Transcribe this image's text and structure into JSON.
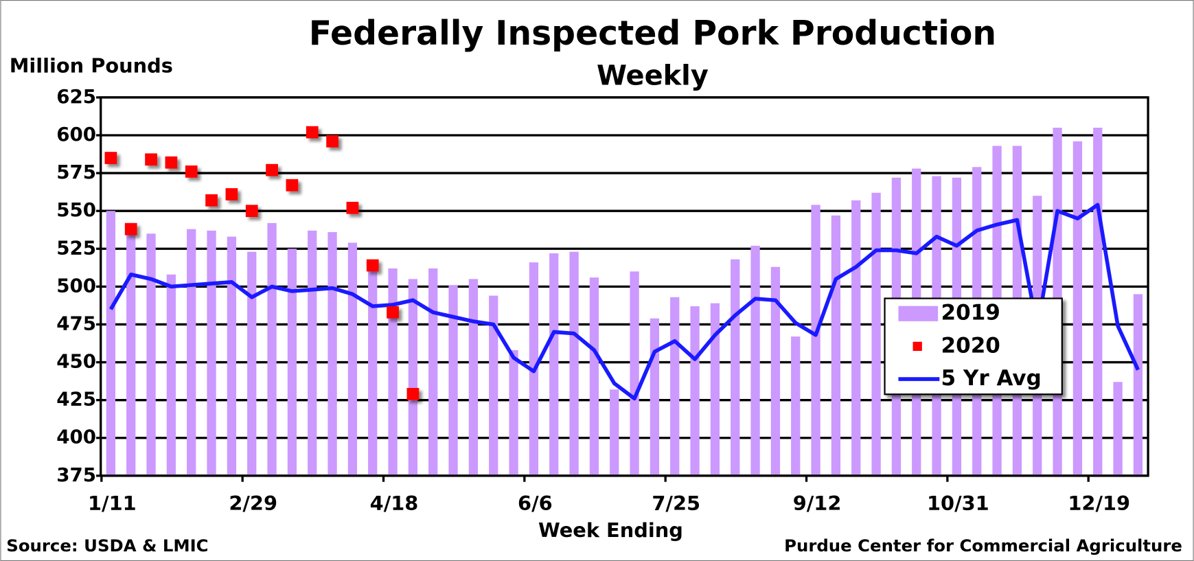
{
  "chart_data": {
    "type": "bar",
    "title": "Federally Inspected Pork Production",
    "subtitle": "Weekly",
    "y_label": "Million Pounds",
    "x_label": "Week Ending",
    "source": "Source:  USDA & LMIC",
    "credit": "Purdue Center for Commercial Agriculture",
    "categories": [
      "1/11",
      null,
      null,
      null,
      null,
      null,
      null,
      "2/29",
      null,
      null,
      null,
      null,
      null,
      null,
      "4/18",
      null,
      null,
      null,
      null,
      null,
      null,
      "6/6",
      null,
      null,
      null,
      null,
      null,
      null,
      "7/25",
      null,
      null,
      null,
      null,
      null,
      null,
      "9/12",
      null,
      null,
      null,
      null,
      null,
      null,
      "10/31",
      null,
      null,
      null,
      null,
      null,
      null,
      "12/19",
      null,
      null
    ],
    "ylim": [
      375,
      625
    ],
    "yticks": [
      375,
      400,
      425,
      450,
      475,
      500,
      525,
      550,
      575,
      600,
      625
    ],
    "grid": true,
    "legend": "right",
    "series": [
      {
        "name": "2019",
        "type": "bar",
        "color": "#cc99ff",
        "values": [
          550,
          540,
          535,
          508,
          538,
          537,
          533,
          523,
          542,
          525,
          537,
          536,
          529,
          514,
          512,
          505,
          512,
          501,
          505,
          494,
          458,
          516,
          522,
          523,
          506,
          432,
          510,
          479,
          493,
          487,
          489,
          518,
          527,
          513,
          467,
          554,
          547,
          557,
          562,
          572,
          578,
          573,
          572,
          579,
          593,
          593,
          560,
          605,
          596,
          605,
          437,
          495
        ]
      },
      {
        "name": "2020",
        "type": "scatter",
        "color": "#ff0000",
        "values": [
          585,
          538,
          584,
          582,
          576,
          557,
          561,
          550,
          577,
          567,
          602,
          596,
          552,
          514,
          483,
          429,
          null,
          null,
          null,
          null,
          null,
          null,
          null,
          null,
          null,
          null,
          null,
          null,
          null,
          null,
          null,
          null,
          null,
          null,
          null,
          null,
          null,
          null,
          null,
          null,
          null,
          null,
          null,
          null,
          null,
          null,
          null,
          null,
          null,
          null,
          null,
          null
        ]
      },
      {
        "name": "5 Yr Avg",
        "type": "line",
        "color": "#1a1aff",
        "values": [
          485,
          508,
          505,
          500,
          501,
          502,
          503,
          493,
          500,
          497,
          498,
          499,
          495,
          487,
          488,
          491,
          483,
          480,
          477,
          475,
          453,
          444,
          470,
          469,
          458,
          436,
          426,
          457,
          464,
          452,
          468,
          481,
          492,
          491,
          476,
          468,
          505,
          513,
          524,
          524,
          522,
          533,
          527,
          537,
          541,
          544,
          472,
          550,
          545,
          554,
          474,
          445
        ]
      }
    ]
  }
}
